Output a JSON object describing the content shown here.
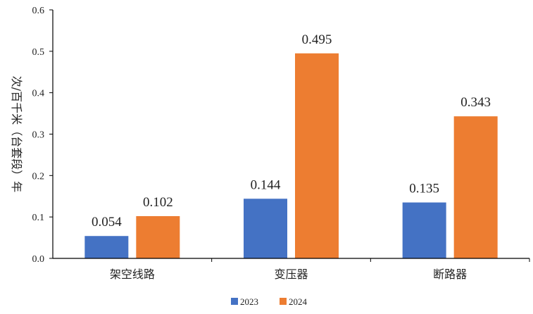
{
  "chart_data": {
    "type": "bar",
    "title": "",
    "xlabel": "",
    "ylabel": "次/百千米（台套段）年",
    "categories": [
      "架空线路",
      "变压器",
      "断路器"
    ],
    "series": [
      {
        "name": "2023",
        "values": [
          0.054,
          0.144,
          0.135
        ],
        "color": "#4472C4"
      },
      {
        "name": "2024",
        "values": [
          0.102,
          0.495,
          0.343
        ],
        "color": "#ED7D31"
      }
    ],
    "ylim": [
      0,
      0.6
    ],
    "yticks": [
      "0.0",
      "0.1",
      "0.2",
      "0.3",
      "0.4",
      "0.5",
      "0.6"
    ],
    "data_labels": [
      [
        "0.054",
        "0.144",
        "0.135"
      ],
      [
        "0.102",
        "0.495",
        "0.343"
      ]
    ],
    "grid": false,
    "legend": "bottom-center"
  }
}
